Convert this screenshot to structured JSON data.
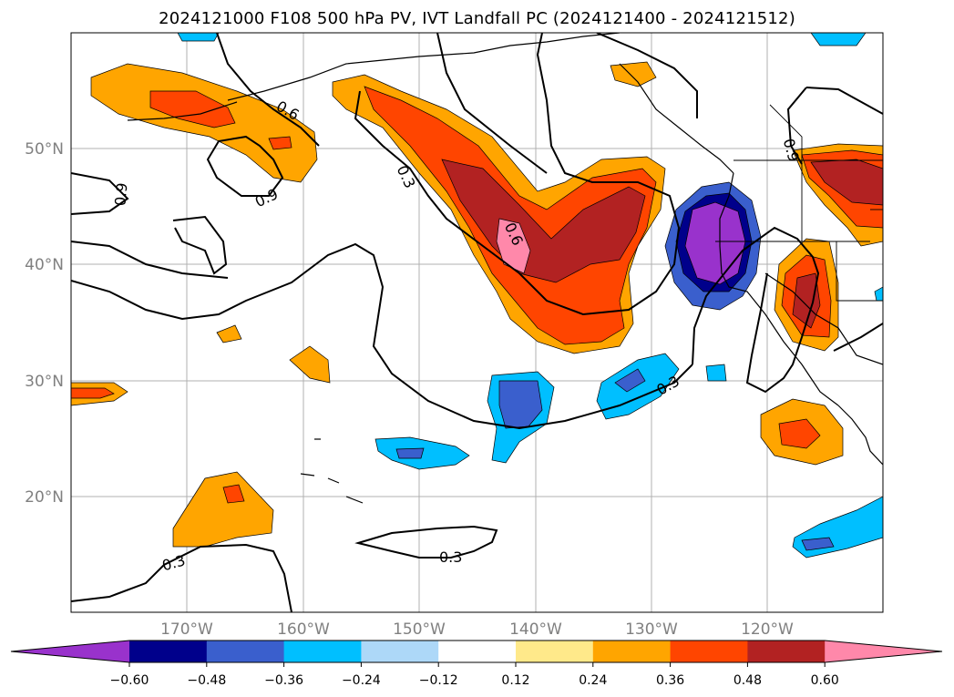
{
  "title": "2024121000 F108 500 hPa PV, IVT Landfall PC (2024121400 - 2024121512)",
  "lat_ticks": [
    "50°N",
    "40°N",
    "30°N",
    "20°N"
  ],
  "lon_ticks": [
    "170°W",
    "160°W",
    "150°W",
    "140°W",
    "130°W",
    "120°W"
  ],
  "map_extent": {
    "lon_min": -180,
    "lon_max": -110,
    "lat_min": 10,
    "lat_max": 60
  },
  "contour_labels": [
    "0.6",
    "0.9",
    "0.9",
    "0.3",
    "0.6",
    "0.3",
    "0.9",
    "0.3",
    "0.3"
  ],
  "colorbar": {
    "tick_labels": [
      "−0.60",
      "−0.48",
      "−0.36",
      "−0.24",
      "−0.12",
      "0.12",
      "0.24",
      "0.36",
      "0.48",
      "0.60"
    ],
    "colors": [
      "#9932CC",
      "#00008B",
      "#3A5FCD",
      "#00BFFF",
      "#ADD8F8",
      "#FFFFFF",
      "#FFE98A",
      "#FFA500",
      "#FF4500",
      "#B22222",
      "#FF88AA"
    ]
  }
}
